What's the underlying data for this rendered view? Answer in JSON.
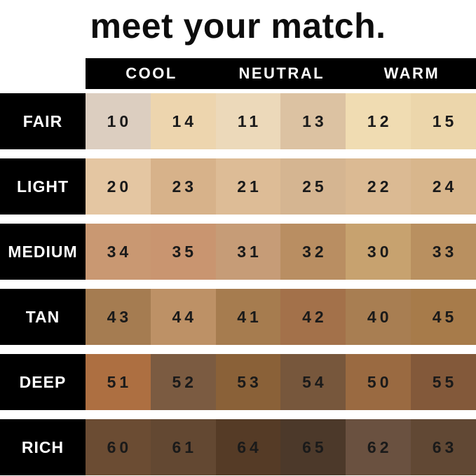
{
  "title": "meet your match.",
  "colors": {
    "background": "#ffffff",
    "bar_background": "#000000",
    "header_text": "#ffffff",
    "row_label_text": "#ffffff",
    "swatch_number_text": "#1a1a1a",
    "title_text": "#0d0d0d"
  },
  "chart_data": {
    "type": "table",
    "title": "meet your match.",
    "column_headers": [
      "COOL",
      "NEUTRAL",
      "WARM"
    ],
    "columns_per_header": 2,
    "row_labels": [
      "FAIR",
      "LIGHT",
      "MEDIUM",
      "TAN",
      "DEEP",
      "RICH"
    ],
    "rows": [
      {
        "label": "FAIR",
        "swatches": [
          {
            "number": "10",
            "color": "#dccec0"
          },
          {
            "number": "14",
            "color": "#edd5ae"
          },
          {
            "number": "11",
            "color": "#ecd9ba"
          },
          {
            "number": "13",
            "color": "#dcc2a2"
          },
          {
            "number": "12",
            "color": "#f0dcb2"
          },
          {
            "number": "15",
            "color": "#ecd6ab"
          }
        ]
      },
      {
        "label": "LIGHT",
        "swatches": [
          {
            "number": "20",
            "color": "#e4c6a2"
          },
          {
            "number": "23",
            "color": "#d7b28a"
          },
          {
            "number": "21",
            "color": "#ddbc96"
          },
          {
            "number": "25",
            "color": "#d5b591"
          },
          {
            "number": "22",
            "color": "#dbba93"
          },
          {
            "number": "24",
            "color": "#d8b68c"
          }
        ]
      },
      {
        "label": "MEDIUM",
        "swatches": [
          {
            "number": "34",
            "color": "#c99872"
          },
          {
            "number": "35",
            "color": "#c99570"
          },
          {
            "number": "31",
            "color": "#c69c77"
          },
          {
            "number": "32",
            "color": "#b98e62"
          },
          {
            "number": "30",
            "color": "#c7a26f"
          },
          {
            "number": "33",
            "color": "#b99060"
          }
        ]
      },
      {
        "label": "TAN",
        "swatches": [
          {
            "number": "43",
            "color": "#a57c51"
          },
          {
            "number": "44",
            "color": "#bd9166"
          },
          {
            "number": "41",
            "color": "#a67c4f"
          },
          {
            "number": "42",
            "color": "#a3714a"
          },
          {
            "number": "40",
            "color": "#a87e52"
          },
          {
            "number": "45",
            "color": "#a77b4a"
          }
        ]
      },
      {
        "label": "DEEP",
        "swatches": [
          {
            "number": "51",
            "color": "#ad6f41"
          },
          {
            "number": "52",
            "color": "#7b5b41"
          },
          {
            "number": "53",
            "color": "#8a6138"
          },
          {
            "number": "54",
            "color": "#77573c"
          },
          {
            "number": "50",
            "color": "#9a6a41"
          },
          {
            "number": "55",
            "color": "#83593a"
          }
        ]
      },
      {
        "label": "RICH",
        "swatches": [
          {
            "number": "60",
            "color": "#6b4c33"
          },
          {
            "number": "61",
            "color": "#634832"
          },
          {
            "number": "64",
            "color": "#553b26"
          },
          {
            "number": "65",
            "color": "#4c392a"
          },
          {
            "number": "62",
            "color": "#6a5140"
          },
          {
            "number": "63",
            "color": "#614834"
          }
        ]
      }
    ]
  }
}
